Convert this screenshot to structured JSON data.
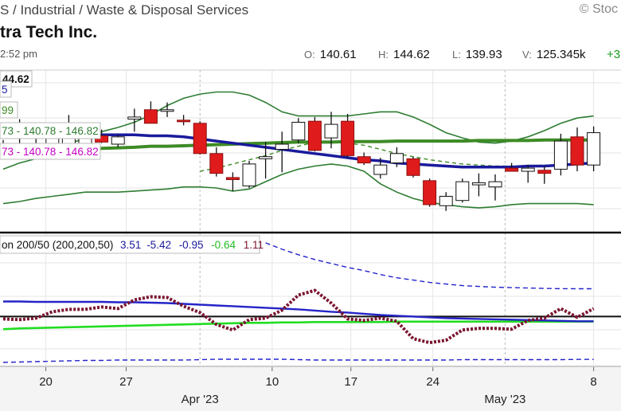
{
  "header": {
    "sector": "S / Industrial / Waste & Disposal Services",
    "copyright": "© Stoc",
    "company": "tra Tech Inc.",
    "time": "2:52 pm",
    "ohlc": {
      "o_label": "O:",
      "o": "140.61",
      "h_label": "H:",
      "h": "144.62",
      "l_label": "L:",
      "l": "139.93",
      "v_label": "V:",
      "v": "125.345k",
      "change": "+3"
    }
  },
  "colors": {
    "up": "#ffffff",
    "down": "#e01b1b",
    "bollinger": "#2e7d32",
    "ma_blue": "#1a1a9c",
    "ma_green": "#3d8b25",
    "dashed": "#3d8b25",
    "osc": "#7b1530",
    "osc_lime": "#22dd22",
    "osc_blue": "#2424c8",
    "osc_band": "#2222cc"
  },
  "chart_data": [
    {
      "type": "candlestick",
      "price_label": "44.62",
      "legend_rows": [
        {
          "text": "5",
          "color": "#1a1a9c"
        },
        {
          "text": "99",
          "color": "#3d8b25"
        },
        {
          "text": "73 - 140.78 - 146.82",
          "color": "#2e7d32"
        },
        {
          "text": "73 - 140.78 - 146.82",
          "color": "#c400c4"
        }
      ],
      "x_ticks": [
        "20",
        "27",
        "10",
        "17",
        "24",
        "8"
      ],
      "x_month_ticks": [
        "Apr '23",
        "May '23"
      ],
      "candles": [
        {
          "o": 137.8,
          "h": 138.6,
          "l": 137.4,
          "c": 138.1,
          "d": 0
        },
        {
          "o": 138.0,
          "h": 140.6,
          "l": 137.2,
          "c": 138.0,
          "d": 0
        },
        {
          "o": 138.1,
          "h": 139.0,
          "l": 137.9,
          "c": 138.2,
          "d": 0
        },
        {
          "o": 138.2,
          "h": 140.2,
          "l": 137.6,
          "c": 139.0,
          "d": 0
        },
        {
          "o": 137.6,
          "h": 141.0,
          "l": 137.4,
          "c": 139.6,
          "d": 0
        },
        {
          "o": 138.1,
          "h": 140.1,
          "l": 137.6,
          "c": 138.9,
          "d": 0
        },
        {
          "o": 139.0,
          "h": 139.6,
          "l": 138.3,
          "c": 138.4,
          "d": 1
        },
        {
          "o": 138.2,
          "h": 139.1,
          "l": 137.9,
          "c": 138.9,
          "d": 0
        },
        {
          "o": 140.6,
          "h": 141.6,
          "l": 139.4,
          "c": 140.8,
          "d": 0
        },
        {
          "o": 141.5,
          "h": 142.3,
          "l": 140.2,
          "c": 140.2,
          "d": 1
        },
        {
          "o": 141.5,
          "h": 142.2,
          "l": 140.8,
          "c": 141.5,
          "d": 0
        },
        {
          "o": 140.5,
          "h": 141.0,
          "l": 140.0,
          "c": 140.5,
          "d": 1
        },
        {
          "o": 140.2,
          "h": 140.4,
          "l": 137.2,
          "c": 137.3,
          "d": 1
        },
        {
          "o": 137.3,
          "h": 137.9,
          "l": 135.1,
          "c": 135.4,
          "d": 1
        },
        {
          "o": 135.0,
          "h": 135.5,
          "l": 133.7,
          "c": 134.8,
          "d": 1
        },
        {
          "o": 134.2,
          "h": 136.6,
          "l": 134.0,
          "c": 136.3,
          "d": 0
        },
        {
          "o": 136.8,
          "h": 138.4,
          "l": 134.9,
          "c": 137.0,
          "d": 0
        },
        {
          "o": 137.7,
          "h": 139.4,
          "l": 135.5,
          "c": 138.2,
          "d": 0
        },
        {
          "o": 138.6,
          "h": 140.7,
          "l": 138.3,
          "c": 140.3,
          "d": 0
        },
        {
          "o": 140.4,
          "h": 140.8,
          "l": 137.5,
          "c": 137.6,
          "d": 1
        },
        {
          "o": 138.8,
          "h": 141.3,
          "l": 137.8,
          "c": 140.1,
          "d": 0
        },
        {
          "o": 140.4,
          "h": 141.1,
          "l": 136.9,
          "c": 137.1,
          "d": 1
        },
        {
          "o": 137.0,
          "h": 137.4,
          "l": 136.2,
          "c": 136.4,
          "d": 1
        },
        {
          "o": 135.3,
          "h": 136.9,
          "l": 134.9,
          "c": 136.2,
          "d": 0
        },
        {
          "o": 136.4,
          "h": 137.9,
          "l": 136.0,
          "c": 137.3,
          "d": 0
        },
        {
          "o": 136.8,
          "h": 137.0,
          "l": 135.0,
          "c": 135.2,
          "d": 1
        },
        {
          "o": 134.7,
          "h": 134.9,
          "l": 132.2,
          "c": 132.4,
          "d": 1
        },
        {
          "o": 132.3,
          "h": 133.6,
          "l": 131.8,
          "c": 133.2,
          "d": 0
        },
        {
          "o": 132.8,
          "h": 134.9,
          "l": 132.6,
          "c": 134.6,
          "d": 0
        },
        {
          "o": 134.3,
          "h": 135.4,
          "l": 133.2,
          "c": 134.5,
          "d": 0
        },
        {
          "o": 134.6,
          "h": 135.3,
          "l": 132.8,
          "c": 134.1,
          "d": 0
        },
        {
          "o": 135.9,
          "h": 136.4,
          "l": 135.6,
          "c": 135.6,
          "d": 1
        },
        {
          "o": 135.6,
          "h": 136.2,
          "l": 134.5,
          "c": 135.9,
          "d": 0
        },
        {
          "o": 135.7,
          "h": 136.1,
          "l": 134.4,
          "c": 135.4,
          "d": 1
        },
        {
          "o": 135.8,
          "h": 139.2,
          "l": 135.2,
          "c": 138.5,
          "d": 0
        },
        {
          "o": 138.9,
          "h": 139.8,
          "l": 135.6,
          "c": 136.2,
          "d": 1
        },
        {
          "o": 136.2,
          "h": 139.9,
          "l": 135.6,
          "c": 139.3,
          "d": 0
        }
      ],
      "upper_band": [
        135.8,
        136.4,
        136.8,
        137.5,
        138.2,
        138.8,
        139.4,
        139.8,
        140.3,
        141.0,
        141.9,
        142.6,
        143.0,
        143.2,
        143.2,
        142.9,
        142.2,
        141.3,
        140.9,
        140.9,
        140.9,
        140.9,
        141.1,
        141.3,
        141.3,
        140.8,
        140.1,
        139.3,
        138.8,
        138.4,
        138.3,
        138.5,
        138.9,
        139.5,
        140.2,
        140.7,
        140.9
      ],
      "lower_band": [
        132.5,
        132.7,
        133.0,
        133.2,
        133.4,
        133.6,
        133.6,
        133.6,
        133.7,
        133.8,
        133.9,
        134.1,
        134.1,
        134.0,
        133.7,
        133.9,
        134.6,
        135.3,
        135.8,
        136.1,
        136.3,
        136.1,
        135.6,
        134.4,
        133.6,
        133.0,
        132.6,
        132.4,
        132.2,
        132.1,
        132.2,
        132.4,
        132.5,
        132.5,
        132.5,
        132.5,
        132.4
      ],
      "ma_blue": [
        139.0,
        139.0,
        139.0,
        139.1,
        139.1,
        139.1,
        139.1,
        139.1,
        139.1,
        139.0,
        139.0,
        138.9,
        138.7,
        138.5,
        138.3,
        138.1,
        137.9,
        137.7,
        137.5,
        137.3,
        137.1,
        136.9,
        136.7,
        136.6,
        136.4,
        136.3,
        136.2,
        136.1,
        136.0,
        136.0,
        136.0,
        136.0,
        136.1,
        136.1,
        136.2,
        136.3,
        136.4
      ],
      "ma_green": [
        137.2,
        137.3,
        137.4,
        137.5,
        137.6,
        137.7,
        137.8,
        137.85,
        137.9,
        138.0,
        138.0,
        138.05,
        138.1,
        138.15,
        138.2,
        138.25,
        138.3,
        138.35,
        138.4,
        138.4,
        138.4,
        138.45,
        138.45,
        138.45,
        138.5,
        138.5,
        138.5,
        138.5,
        138.5,
        138.55,
        138.55,
        138.55,
        138.55,
        138.6,
        138.6,
        138.6,
        138.6
      ],
      "dashed_ma": [
        null,
        null,
        null,
        null,
        null,
        null,
        null,
        null,
        null,
        null,
        null,
        null,
        135.6,
        135.9,
        136.3,
        136.7,
        137.1,
        137.6,
        138.0,
        138.4,
        138.4,
        138.3,
        138.1,
        137.7,
        137.3,
        137.0,
        136.7,
        136.5,
        136.3,
        136.2,
        136.1,
        136.1,
        136.1,
        136.2,
        136.2,
        136.3,
        136.4
      ],
      "y_range": [
        129.8,
        145.3
      ]
    },
    {
      "type": "line",
      "title": "on 200/50 (200,200,50)",
      "values_text": [
        {
          "text": "3.51",
          "color": "#1a1a9c"
        },
        {
          "text": "-5.42",
          "color": "#1a1a9c"
        },
        {
          "text": "-0.95",
          "color": "#1a1a9c"
        },
        {
          "text": "-0.64",
          "color": "#22bb22"
        },
        {
          "text": "1.11",
          "color": "#7b1530"
        }
      ],
      "series": [
        {
          "values": [
            -0.3,
            -0.4,
            -0.2,
            0.6,
            0.9,
            0.9,
            1.2,
            1.0,
            2.1,
            2.5,
            2.4,
            1.3,
            0.5,
            -1.0,
            -1.7,
            -0.4,
            -0.2,
            0.8,
            2.7,
            3.3,
            1.7,
            -0.3,
            -0.5,
            -0.2,
            -0.6,
            -2.8,
            -3.3,
            -3.0,
            -1.7,
            -1.5,
            -1.5,
            -1.6,
            -0.5,
            -0.2,
            1.0,
            -0.1,
            1.0
          ]
        },
        {
          "values": [
            1.9,
            1.9,
            1.85,
            1.85,
            1.85,
            1.85,
            1.85,
            1.8,
            1.8,
            1.75,
            1.7,
            1.6,
            1.5,
            1.4,
            1.3,
            1.2,
            1.1,
            1.0,
            0.9,
            0.75,
            0.6,
            0.5,
            0.35,
            0.2,
            0.1,
            0.0,
            -0.1,
            -0.2,
            -0.25,
            -0.3,
            -0.35,
            -0.4,
            -0.45,
            -0.5,
            -0.55,
            -0.6,
            -0.6
          ]
        },
        {
          "values": [
            -1.6,
            -1.5,
            -1.45,
            -1.4,
            -1.35,
            -1.3,
            -1.25,
            -1.2,
            -1.15,
            -1.1,
            -1.05,
            -1.0,
            -0.95,
            -0.9,
            -0.85,
            -0.8,
            -0.8,
            -0.75,
            -0.75,
            -0.7,
            -0.7,
            -0.7,
            -0.7,
            -0.7,
            -0.65,
            -0.65,
            -0.65,
            -0.65,
            -0.65,
            -0.65,
            -0.65,
            -0.65,
            -0.65,
            -0.65,
            -0.65,
            -0.64,
            -0.64
          ]
        },
        {
          "values": [
            null,
            null,
            null,
            null,
            null,
            null,
            null,
            null,
            null,
            null,
            null,
            null,
            null,
            null,
            null,
            null,
            9.3,
            8.5,
            7.8,
            7.2,
            6.7,
            6.2,
            5.8,
            5.3,
            4.9,
            4.6,
            4.3,
            4.1,
            3.9,
            3.8,
            3.7,
            3.65,
            3.6,
            3.55,
            3.52,
            3.51,
            3.51
          ]
        },
        {
          "values": [
            -5.8,
            -5.75,
            -5.7,
            -5.65,
            -5.6,
            -5.55,
            -5.55,
            -5.5,
            -5.5,
            -5.5,
            -5.5,
            -5.5,
            -5.45,
            -5.4,
            -5.4,
            -5.4,
            -5.4,
            -5.4,
            -5.45,
            -5.5,
            -5.5,
            -5.5,
            -5.5,
            -5.5,
            -5.5,
            -5.5,
            -5.5,
            -5.5,
            -5.45,
            -5.45,
            -5.45,
            -5.45,
            -5.45,
            -5.45,
            -5.45,
            -5.42,
            -5.42
          ]
        }
      ],
      "y_range": [
        -6.2,
        10.5
      ]
    }
  ]
}
